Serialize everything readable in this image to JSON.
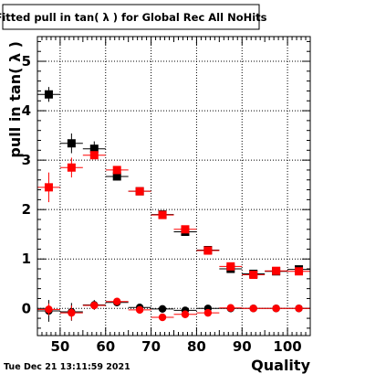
{
  "chart_data": {
    "type": "scatter",
    "title": "Fitted pull in tan( λ ) for Global Rec All NoHits",
    "xlabel": "Quality",
    "ylabel": "pull in tan( λ )",
    "xlim": [
      45,
      105
    ],
    "ylim": [
      -0.55,
      5.5
    ],
    "x_ticks": [
      50,
      60,
      70,
      80,
      90,
      100
    ],
    "y_ticks": [
      0,
      1,
      2,
      3,
      4,
      5
    ],
    "grid": true,
    "x_bin_width": 5,
    "series": [
      {
        "marker": "square",
        "color": "#000000",
        "points": [
          {
            "x": 47.5,
            "y": 4.33,
            "err": 0.15
          },
          {
            "x": 52.5,
            "y": 3.34,
            "err": 0.2
          },
          {
            "x": 57.5,
            "y": 3.23,
            "err": 0.15
          },
          {
            "x": 62.5,
            "y": 2.67,
            "err": 0.08
          },
          {
            "x": 67.5,
            "y": 2.37,
            "err": 0.05
          },
          {
            "x": 72.5,
            "y": 1.9,
            "err": 0.04
          },
          {
            "x": 77.5,
            "y": 1.55,
            "err": 0.04
          },
          {
            "x": 82.5,
            "y": 1.18,
            "err": 0.04
          },
          {
            "x": 87.5,
            "y": 0.8,
            "err": 0.04
          },
          {
            "x": 92.5,
            "y": 0.7,
            "err": 0.03
          },
          {
            "x": 97.5,
            "y": 0.75,
            "err": 0.03
          },
          {
            "x": 102.5,
            "y": 0.79,
            "err": 0.03
          }
        ]
      },
      {
        "marker": "square",
        "color": "#ff0000",
        "points": [
          {
            "x": 47.5,
            "y": 2.45,
            "err": 0.3
          },
          {
            "x": 52.5,
            "y": 2.85,
            "err": 0.2
          },
          {
            "x": 57.5,
            "y": 3.1,
            "err": 0.08
          },
          {
            "x": 62.5,
            "y": 2.8,
            "err": 0.05
          },
          {
            "x": 67.5,
            "y": 2.37,
            "err": 0.03
          },
          {
            "x": 72.5,
            "y": 1.89,
            "err": 0.03
          },
          {
            "x": 77.5,
            "y": 1.6,
            "err": 0.03
          },
          {
            "x": 82.5,
            "y": 1.17,
            "err": 0.03
          },
          {
            "x": 87.5,
            "y": 0.85,
            "err": 0.03
          },
          {
            "x": 92.5,
            "y": 0.68,
            "err": 0.02
          },
          {
            "x": 97.5,
            "y": 0.76,
            "err": 0.02
          },
          {
            "x": 102.5,
            "y": 0.75,
            "err": 0.02
          }
        ]
      },
      {
        "marker": "circle",
        "color": "#000000",
        "points": [
          {
            "x": 47.5,
            "y": -0.05,
            "err": 0.22
          },
          {
            "x": 52.5,
            "y": -0.07,
            "err": 0.18
          },
          {
            "x": 57.5,
            "y": 0.07,
            "err": 0.1
          },
          {
            "x": 62.5,
            "y": 0.12,
            "err": 0.05
          },
          {
            "x": 67.5,
            "y": 0.02,
            "err": 0.04
          },
          {
            "x": 72.5,
            "y": -0.01,
            "err": 0.03
          },
          {
            "x": 77.5,
            "y": -0.04,
            "err": 0.03
          },
          {
            "x": 82.5,
            "y": 0.0,
            "err": 0.02
          },
          {
            "x": 87.5,
            "y": 0.0,
            "err": 0.02
          },
          {
            "x": 92.5,
            "y": 0.0,
            "err": 0.02
          },
          {
            "x": 97.5,
            "y": 0.0,
            "err": 0.02
          },
          {
            "x": 102.5,
            "y": 0.0,
            "err": 0.02
          }
        ]
      },
      {
        "marker": "circle",
        "color": "#ff0000",
        "points": [
          {
            "x": 47.5,
            "y": -0.02,
            "err": 0.12
          },
          {
            "x": 52.5,
            "y": -0.09,
            "err": 0.15
          },
          {
            "x": 57.5,
            "y": 0.06,
            "err": 0.08
          },
          {
            "x": 62.5,
            "y": 0.14,
            "err": 0.06
          },
          {
            "x": 67.5,
            "y": -0.03,
            "err": 0.03
          },
          {
            "x": 72.5,
            "y": -0.18,
            "err": 0.03
          },
          {
            "x": 77.5,
            "y": -0.12,
            "err": 0.03
          },
          {
            "x": 82.5,
            "y": -0.09,
            "err": 0.02
          },
          {
            "x": 87.5,
            "y": 0.01,
            "err": 0.02
          },
          {
            "x": 92.5,
            "y": 0.0,
            "err": 0.02
          },
          {
            "x": 97.5,
            "y": 0.0,
            "err": 0.02
          },
          {
            "x": 102.5,
            "y": 0.0,
            "err": 0.02
          }
        ]
      }
    ]
  },
  "footer": {
    "timestamp": "Tue Dec 21 13:11:59 2021"
  }
}
